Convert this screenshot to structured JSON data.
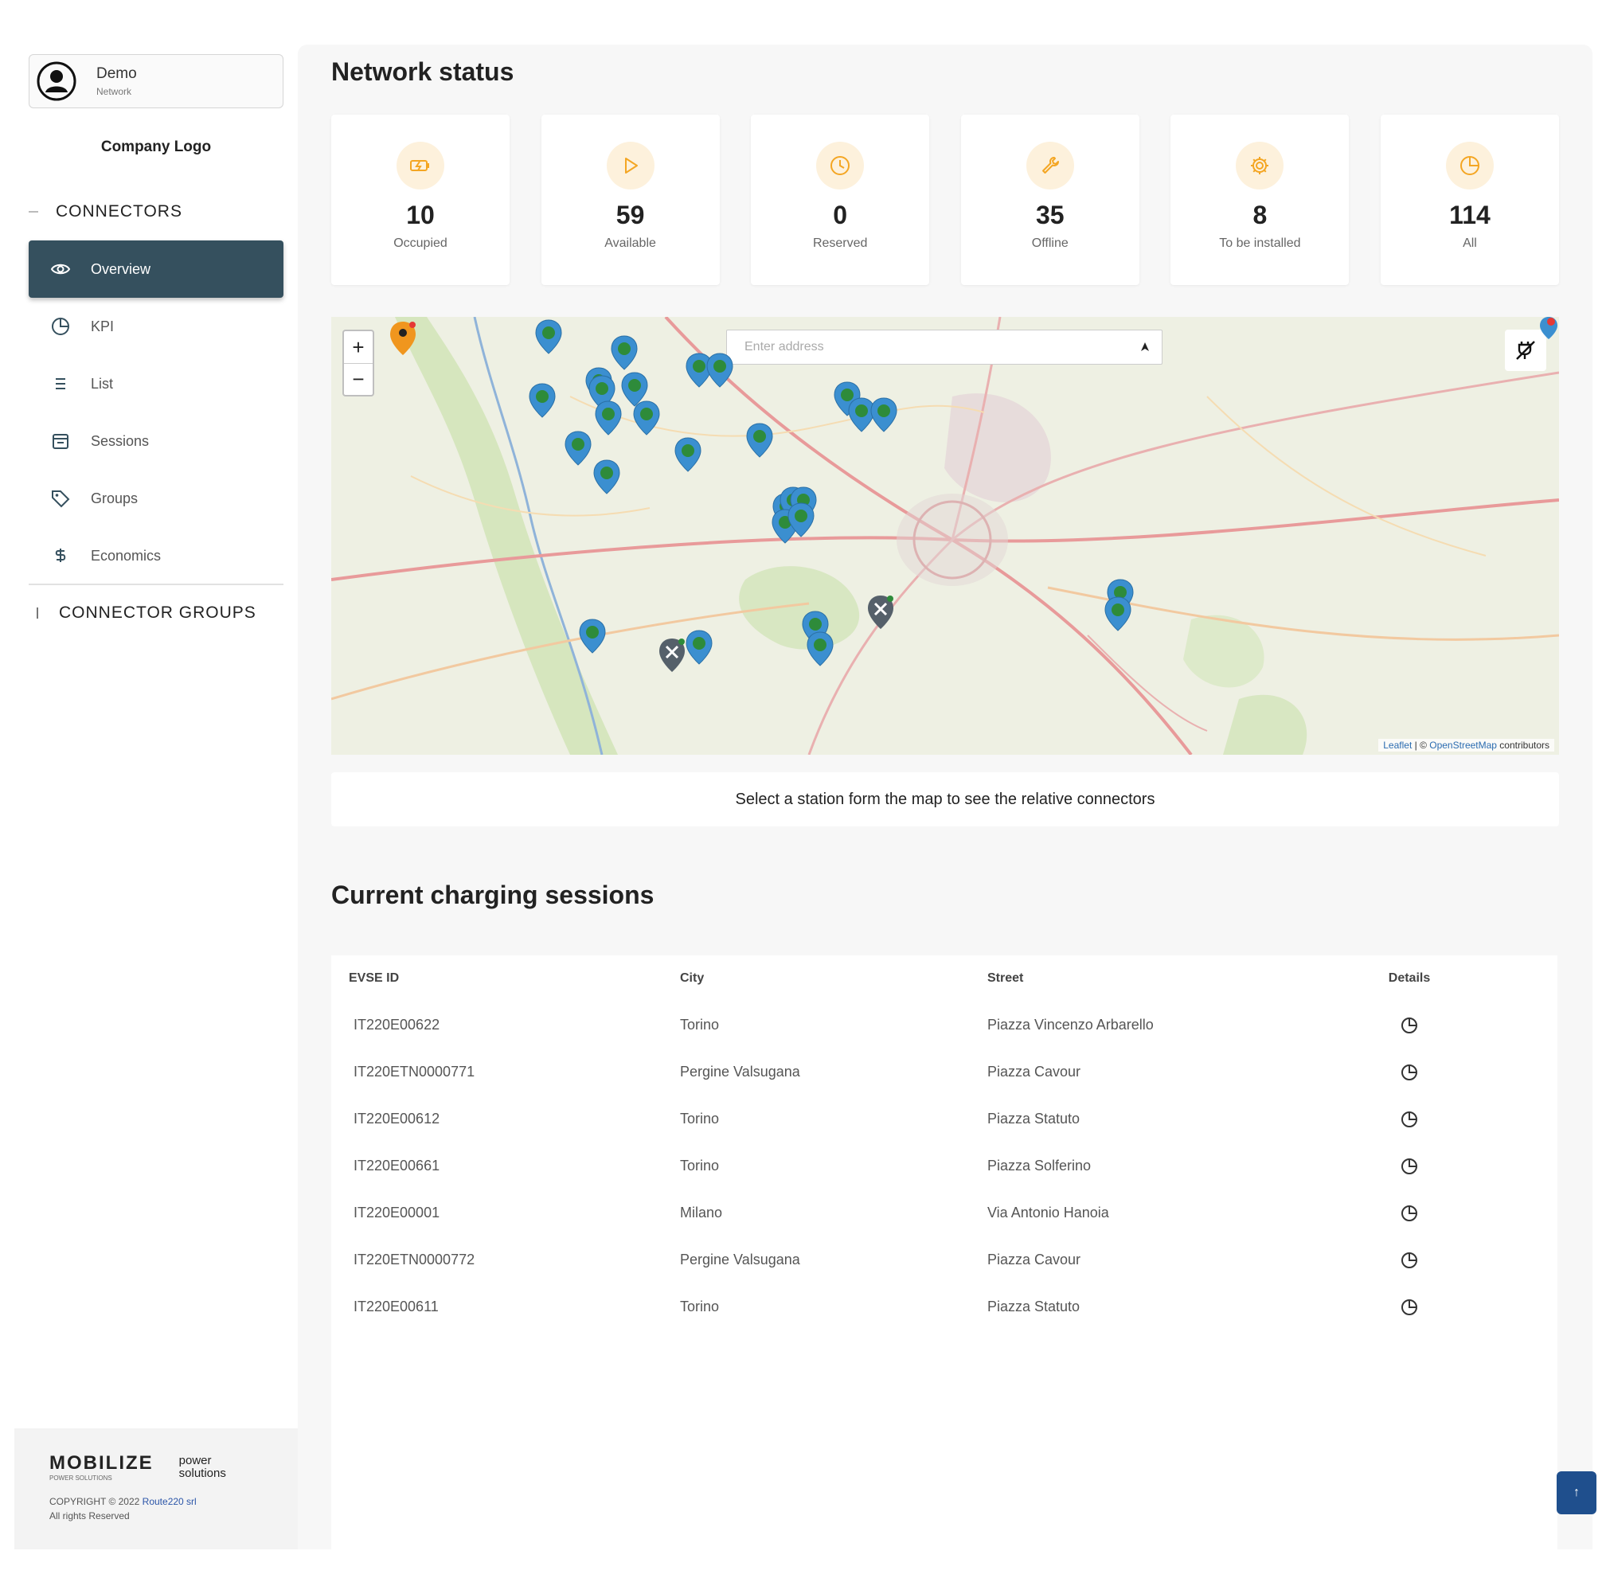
{
  "user": {
    "name": "Demo",
    "role": "Network"
  },
  "company_logo": "Company Logo",
  "sidebar": {
    "connectors_title": "CONNECTORS",
    "items": [
      {
        "label": "Overview",
        "icon": "eye-icon",
        "active": true
      },
      {
        "label": "KPI",
        "icon": "pie-chart-icon"
      },
      {
        "label": "List",
        "icon": "list-icon"
      },
      {
        "label": "Sessions",
        "icon": "calendar-icon"
      },
      {
        "label": "Groups",
        "icon": "tag-icon"
      },
      {
        "label": "Economics",
        "icon": "dollar-icon"
      }
    ],
    "groups_title": "CONNECTOR GROUPS"
  },
  "footer": {
    "brand": "MOBILIZE",
    "brand_sub": "POWER SOLUTIONS",
    "power_line1": "power",
    "power_line2": "solutions",
    "copyright_prefix": "COPYRIGHT © 2022 ",
    "copyright_link": "Route220 srl",
    "rights": "All rights Reserved"
  },
  "network_status": {
    "title": "Network status",
    "cards": [
      {
        "value": "10",
        "label": "Occupied",
        "icon": "charging-battery-icon"
      },
      {
        "value": "59",
        "label": "Available",
        "icon": "play-icon"
      },
      {
        "value": "0",
        "label": "Reserved",
        "icon": "clock-icon"
      },
      {
        "value": "35",
        "label": "Offline",
        "icon": "wrench-icon"
      },
      {
        "value": "8",
        "label": "To be installed",
        "icon": "gear-icon"
      },
      {
        "value": "114",
        "label": "All",
        "icon": "pie-chart-icon"
      }
    ]
  },
  "map": {
    "search_placeholder": "Enter address",
    "attribution_leaflet": "Leaflet",
    "attribution_sep": " | © ",
    "attribution_osm": "OpenStreetMap",
    "attribution_suffix": " contributors",
    "zoom_in": "+",
    "zoom_out": "−",
    "hint": "Select a station form the map to see the relative connectors"
  },
  "sessions": {
    "title": "Current charging sessions",
    "columns": {
      "evse": "EVSE ID",
      "city": "City",
      "street": "Street",
      "details": "Details"
    },
    "rows": [
      {
        "evse": "IT220E00622",
        "city": "Torino",
        "street": "Piazza Vincenzo Arbarello"
      },
      {
        "evse": "IT220ETN0000771",
        "city": "Pergine Valsugana",
        "street": "Piazza Cavour"
      },
      {
        "evse": "IT220E00612",
        "city": "Torino",
        "street": "Piazza Statuto"
      },
      {
        "evse": "IT220E00661",
        "city": "Torino",
        "street": "Piazza Solferino"
      },
      {
        "evse": "IT220E00001",
        "city": "Milano",
        "street": "Via Antonio Hanoia"
      },
      {
        "evse": "IT220ETN0000772",
        "city": "Pergine Valsugana",
        "street": "Piazza Cavour"
      },
      {
        "evse": "IT220E00611",
        "city": "Torino",
        "street": "Piazza Statuto"
      }
    ]
  },
  "scroll_top_label": "↑",
  "colors": {
    "accent": "#35505e",
    "card_icon_bg": "#fdf1dc",
    "card_icon": "#f4a623",
    "marker": "#3b8fd0",
    "marker_dot": "#2e8b3a",
    "fab": "#1f4f8d"
  }
}
